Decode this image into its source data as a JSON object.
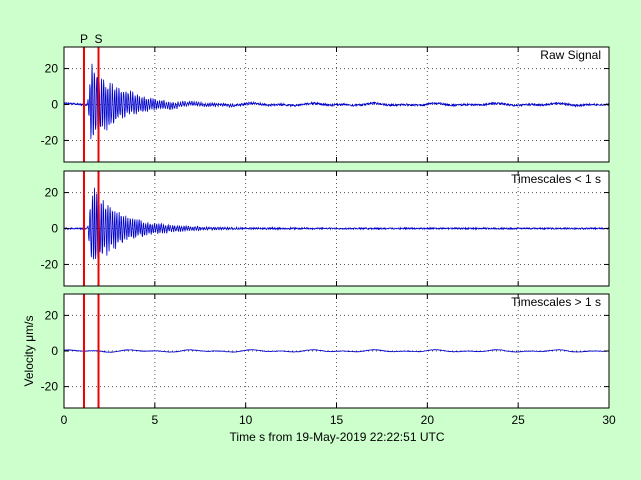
{
  "chart_data": {
    "type": "line",
    "xlabel": "Time s from 19-May-2019 22:22:51 UTC",
    "ylabel": "Velocity μm/s",
    "xlim": [
      0,
      30
    ],
    "x_ticks": [
      0,
      5,
      10,
      15,
      20,
      25,
      30
    ],
    "grid": true,
    "colors": {
      "background": "#ccffcc",
      "plot_bg": "#ffffff",
      "trace": "#0000cc",
      "phase": "#ee0000",
      "grid": "#555555"
    },
    "phase_markers": [
      {
        "label": "P",
        "x": 1.1
      },
      {
        "label": "S",
        "x": 1.9
      }
    ],
    "panels": [
      {
        "name": "Raw Signal",
        "ylim": [
          -32,
          32
        ],
        "y_ticks": [
          -20,
          0,
          20
        ],
        "signal": {
          "onset": 1.3,
          "peak_amplitude": 28,
          "decay_s": 1.6,
          "noise": 0.5,
          "long_period_amplitude": 0.7
        }
      },
      {
        "name": "Timescales < 1 s",
        "ylim": [
          -32,
          32
        ],
        "y_ticks": [
          -20,
          0,
          20
        ],
        "signal": {
          "onset": 1.3,
          "peak_amplitude": 28,
          "decay_s": 1.6,
          "noise": 0.4,
          "long_period_amplitude": 0.0
        }
      },
      {
        "name": "Timescales > 1 s",
        "ylim": [
          -32,
          32
        ],
        "y_ticks": [
          -20,
          0,
          20
        ],
        "signal": {
          "onset": 1.3,
          "peak_amplitude": 0.0,
          "decay_s": 1.6,
          "noise": 0.15,
          "long_period_amplitude": 0.7
        }
      }
    ]
  }
}
